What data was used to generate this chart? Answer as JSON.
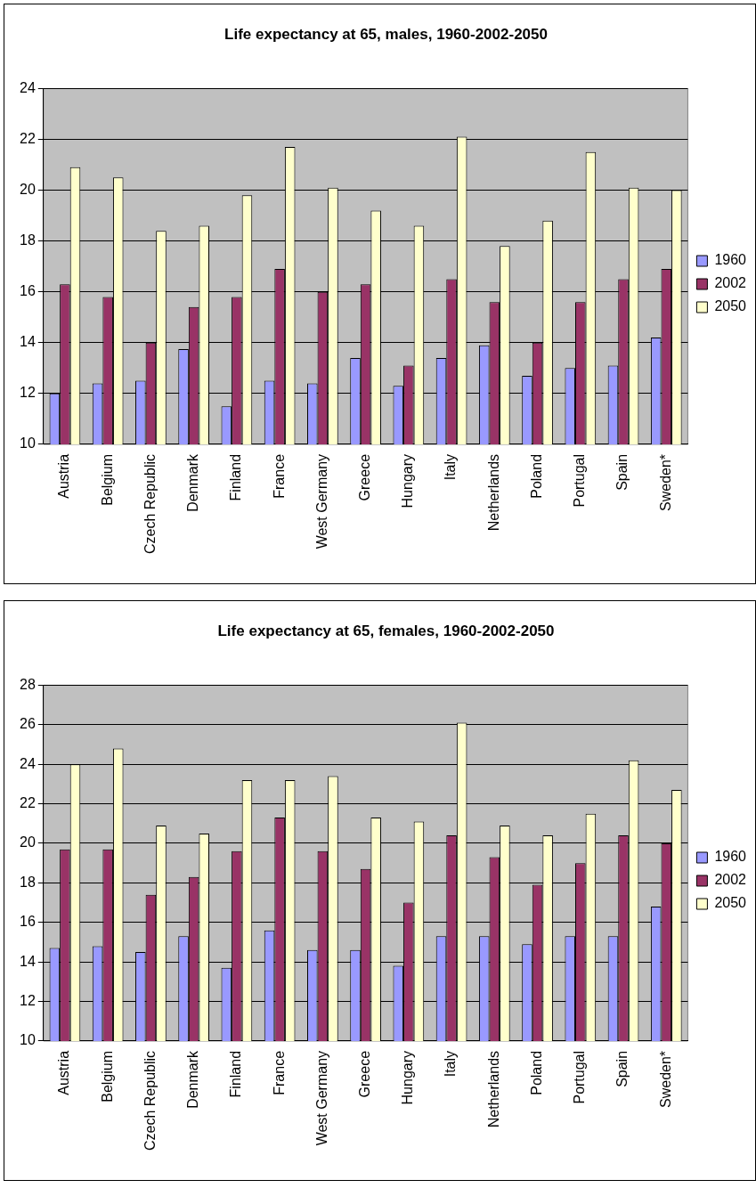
{
  "chart_data": [
    {
      "type": "bar",
      "title": "Life expectancy at 65, males, 1960-2002-2050",
      "categories": [
        "Austria",
        "Belgium",
        "Czech Republic",
        "Denmark",
        "Finland",
        "France",
        "West Germany",
        "Greece",
        "Hungary",
        "Italy",
        "Netherlands",
        "Poland",
        "Portugal",
        "Spain",
        "Sweden*"
      ],
      "series": [
        {
          "name": "1960",
          "color": "#9999ff",
          "values": [
            12.0,
            12.4,
            12.5,
            13.75,
            11.5,
            12.5,
            12.4,
            13.4,
            12.3,
            13.4,
            13.9,
            12.7,
            13.0,
            13.1,
            14.2
          ]
        },
        {
          "name": "2002",
          "color": "#993366",
          "values": [
            16.3,
            15.8,
            14.0,
            15.4,
            15.8,
            16.9,
            16.0,
            16.3,
            13.1,
            16.5,
            15.6,
            14.0,
            15.6,
            16.5,
            16.9
          ]
        },
        {
          "name": "2050",
          "color": "#ffffcc",
          "values": [
            20.9,
            20.5,
            18.4,
            18.6,
            19.8,
            21.7,
            20.1,
            19.2,
            18.6,
            22.1,
            17.8,
            18.8,
            21.5,
            20.1,
            20.0
          ]
        }
      ],
      "ylim": [
        10,
        24
      ],
      "yticks": [
        10,
        12,
        14,
        16,
        18,
        20,
        22,
        24
      ],
      "grid": "y",
      "legend": "right"
    },
    {
      "type": "bar",
      "title": "Life expectancy at 65, females, 1960-2002-2050",
      "categories": [
        "Austria",
        "Belgium",
        "Czech Republic",
        "Denmark",
        "Finland",
        "France",
        "West Germany",
        "Greece",
        "Hungary",
        "Italy",
        "Netherlands",
        "Poland",
        "Portugal",
        "Spain",
        "Sweden*"
      ],
      "series": [
        {
          "name": "1960",
          "color": "#9999ff",
          "values": [
            14.7,
            14.8,
            14.5,
            15.3,
            13.7,
            15.6,
            14.6,
            14.6,
            13.8,
            15.3,
            15.3,
            14.9,
            15.3,
            15.3,
            16.8
          ]
        },
        {
          "name": "2002",
          "color": "#993366",
          "values": [
            19.7,
            19.7,
            17.4,
            18.3,
            19.6,
            21.3,
            19.6,
            18.7,
            17.0,
            20.4,
            19.3,
            17.9,
            19.0,
            20.4,
            20.0
          ]
        },
        {
          "name": "2050",
          "color": "#ffffcc",
          "values": [
            24.0,
            24.8,
            20.9,
            20.5,
            23.2,
            23.2,
            23.4,
            21.3,
            21.1,
            26.1,
            20.9,
            20.4,
            21.5,
            24.2,
            22.7
          ]
        }
      ],
      "ylim": [
        10,
        28
      ],
      "yticks": [
        10,
        12,
        14,
        16,
        18,
        20,
        22,
        24,
        26,
        28
      ],
      "grid": "y",
      "legend": "right"
    }
  ]
}
